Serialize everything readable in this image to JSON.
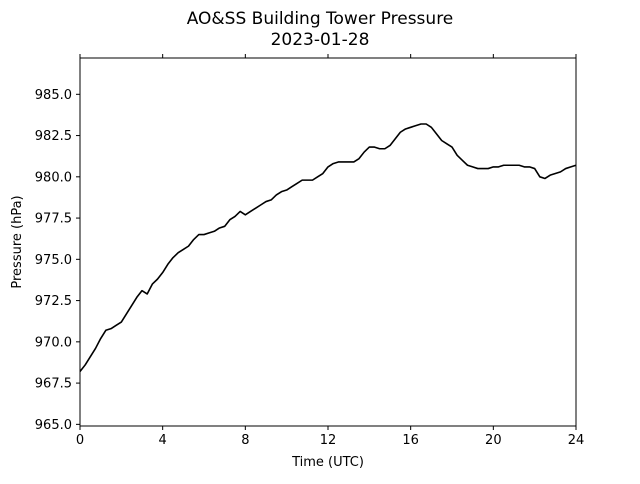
{
  "chart_data": {
    "type": "line",
    "title": "AO&SS Building Tower Pressure",
    "subtitle": "2023-01-28",
    "xlabel": "Time (UTC)",
    "ylabel": "Pressure (hPa)",
    "xlim": [
      0,
      24
    ],
    "ylim": [
      964.9,
      987.2
    ],
    "x_ticks": [
      0,
      4,
      8,
      12,
      16,
      20,
      24
    ],
    "y_ticks": [
      965.0,
      967.5,
      970.0,
      972.5,
      975.0,
      977.5,
      980.0,
      982.5,
      985.0
    ],
    "y_tick_labels": [
      "965.0",
      "967.5",
      "970.0",
      "972.5",
      "975.0",
      "977.5",
      "980.0",
      "982.5",
      "985.0"
    ],
    "grid": false,
    "line_color": "#000000",
    "series": [
      {
        "x": [
          0.0,
          0.25,
          0.5,
          0.75,
          1.0,
          1.25,
          1.5,
          1.75,
          2.0,
          2.25,
          2.5,
          2.75,
          3.0,
          3.25,
          3.5,
          3.75,
          4.0,
          4.25,
          4.5,
          4.75,
          5.0,
          5.25,
          5.5,
          5.75,
          6.0,
          6.25,
          6.5,
          6.75,
          7.0,
          7.25,
          7.5,
          7.75,
          8.0,
          8.25,
          8.5,
          8.75,
          9.0,
          9.25,
          9.5,
          9.75,
          10.0,
          10.25,
          10.5,
          10.75,
          11.0,
          11.25,
          11.5,
          11.75,
          12.0,
          12.25,
          12.5,
          12.75,
          13.0,
          13.25,
          13.5,
          13.75,
          14.0,
          14.25,
          14.5,
          14.75,
          15.0,
          15.25,
          15.5,
          15.75,
          16.0,
          16.25,
          16.5,
          16.75,
          17.0,
          17.25,
          17.5,
          17.75,
          18.0,
          18.25,
          18.5,
          18.75,
          19.0,
          19.25,
          19.5,
          19.75,
          20.0,
          20.25,
          20.5,
          20.75,
          21.0,
          21.25,
          21.5,
          21.75,
          22.0,
          22.25,
          22.5,
          22.75,
          23.0,
          23.25,
          23.5,
          23.75,
          24.0
        ],
        "y": [
          968.2,
          968.6,
          969.1,
          969.6,
          970.2,
          970.7,
          970.8,
          971.0,
          971.2,
          971.7,
          972.2,
          972.7,
          973.1,
          972.9,
          973.5,
          973.8,
          974.2,
          974.7,
          975.1,
          975.4,
          975.6,
          975.8,
          976.2,
          976.5,
          976.5,
          976.6,
          976.7,
          976.9,
          977.0,
          977.4,
          977.6,
          977.9,
          977.7,
          977.9,
          978.1,
          978.3,
          978.5,
          978.6,
          978.9,
          979.1,
          979.2,
          979.4,
          979.6,
          979.8,
          979.8,
          979.8,
          980.0,
          980.2,
          980.6,
          980.8,
          980.9,
          980.9,
          980.9,
          980.9,
          981.1,
          981.5,
          981.8,
          981.8,
          981.7,
          981.7,
          981.9,
          982.3,
          982.7,
          982.9,
          983.0,
          983.1,
          983.2,
          983.2,
          983.0,
          982.6,
          982.2,
          982.0,
          981.8,
          981.3,
          981.0,
          980.7,
          980.6,
          980.5,
          980.5,
          980.5,
          980.6,
          980.6,
          980.7,
          980.7,
          980.7,
          980.7,
          980.6,
          980.6,
          980.5,
          980.0,
          979.9,
          980.1,
          980.2,
          980.3,
          980.5,
          980.6,
          980.7
        ]
      }
    ]
  }
}
